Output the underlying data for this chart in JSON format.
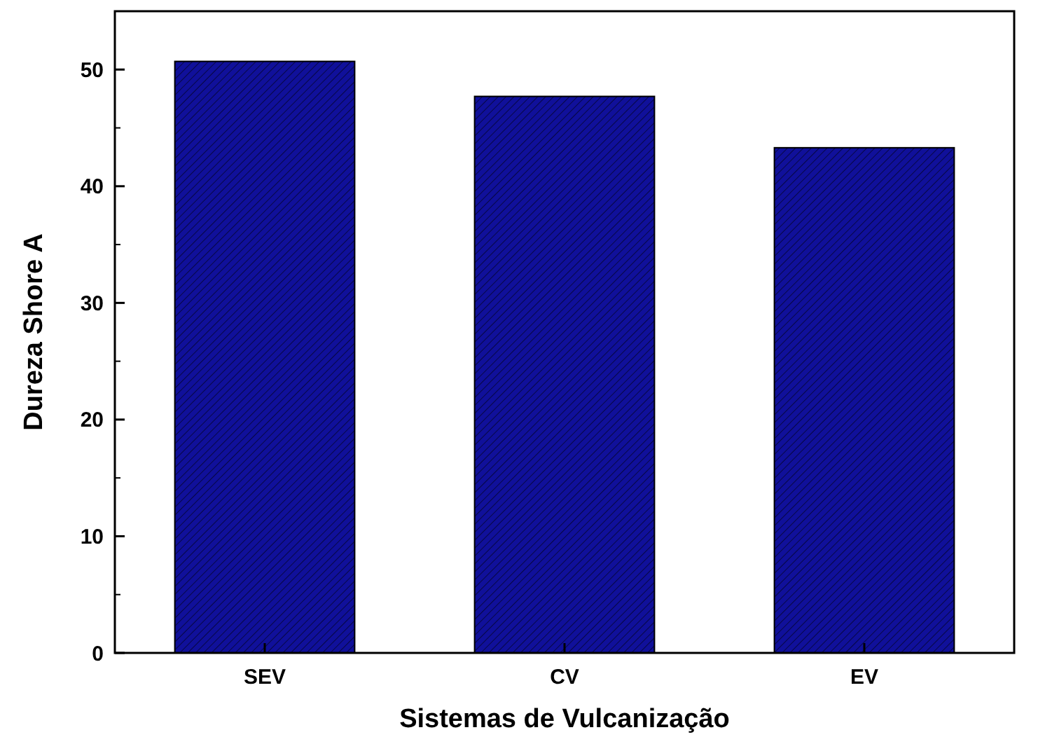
{
  "chart_data": {
    "type": "bar",
    "xlabel": "Sistemas de Vulcanização",
    "ylabel": "Dureza Shore A",
    "categories": [
      "SEV",
      "CV",
      "EV"
    ],
    "values": [
      50.7,
      47.7,
      43.3
    ],
    "color": "#10109a",
    "ylim": [
      0,
      55
    ],
    "yticks": [
      0,
      10,
      20,
      30,
      40,
      50
    ],
    "grid": false
  }
}
